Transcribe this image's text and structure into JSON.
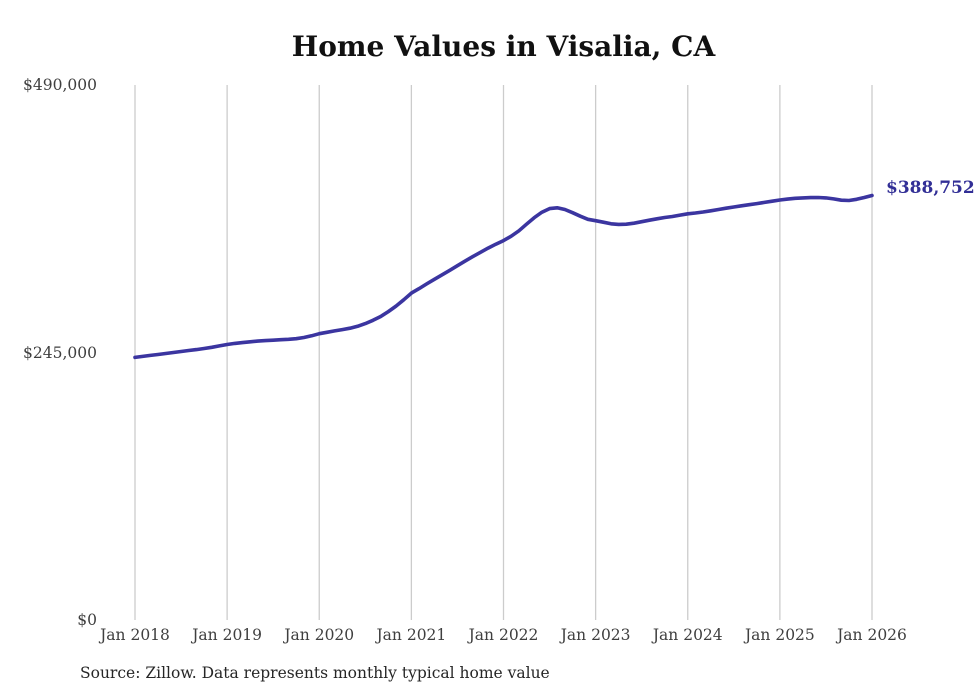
{
  "chart_data": {
    "type": "line",
    "title": "Home Values in Visalia, CA",
    "source": "Source: Zillow. Data represents monthly typical home value",
    "end_label": "$388,752",
    "end_value": 388752,
    "x_labels": [
      "Jan 2018",
      "Jan 2019",
      "Jan 2020",
      "Jan 2021",
      "Jan 2022",
      "Jan 2023",
      "Jan 2024",
      "Jan 2025",
      "Jan 2026"
    ],
    "y_ticks": [
      {
        "value": 0,
        "label": "$0"
      },
      {
        "value": 245000,
        "label": "$245,000"
      },
      {
        "value": 490000,
        "label": "$490,000"
      }
    ],
    "ylim": [
      0,
      490000
    ],
    "frequency": "monthly",
    "grid": "vertical-only",
    "legend": "none",
    "colors": {
      "line": "#3b35a0",
      "end_label": "#322f96",
      "grid": "#cccccc",
      "title": "#111111",
      "ticks": "#3f3f3f",
      "source": "#262626",
      "background": "#ffffff"
    },
    "series": [
      {
        "name": "Typical home value (USD)",
        "start": "2018-01",
        "end": "2026-01",
        "values": [
          240500,
          241400,
          242300,
          243200,
          244100,
          245000,
          245900,
          246800,
          247700,
          248700,
          249800,
          251000,
          252300,
          253300,
          254100,
          254800,
          255400,
          255900,
          256300,
          256700,
          257100,
          257600,
          258700,
          260300,
          262200,
          263500,
          264800,
          266000,
          267300,
          269000,
          271500,
          274500,
          278000,
          282500,
          287500,
          293300,
          299400,
          303500,
          307800,
          312000,
          316200,
          320300,
          324500,
          328700,
          332800,
          336800,
          340600,
          344200,
          347500,
          351500,
          356500,
          362500,
          368500,
          373500,
          376800,
          377500,
          376000,
          373000,
          369800,
          367000,
          365700,
          364300,
          362900,
          362300,
          362500,
          363400,
          364800,
          366200,
          367500,
          368600,
          369600,
          370800,
          372000,
          372800,
          373700,
          374800,
          376000,
          377200,
          378300,
          379400,
          380400,
          381400,
          382500,
          383600,
          384700,
          385500,
          386200,
          386600,
          386900,
          387000,
          386600,
          385700,
          384500,
          384200,
          385300,
          387000,
          388752
        ]
      }
    ]
  }
}
